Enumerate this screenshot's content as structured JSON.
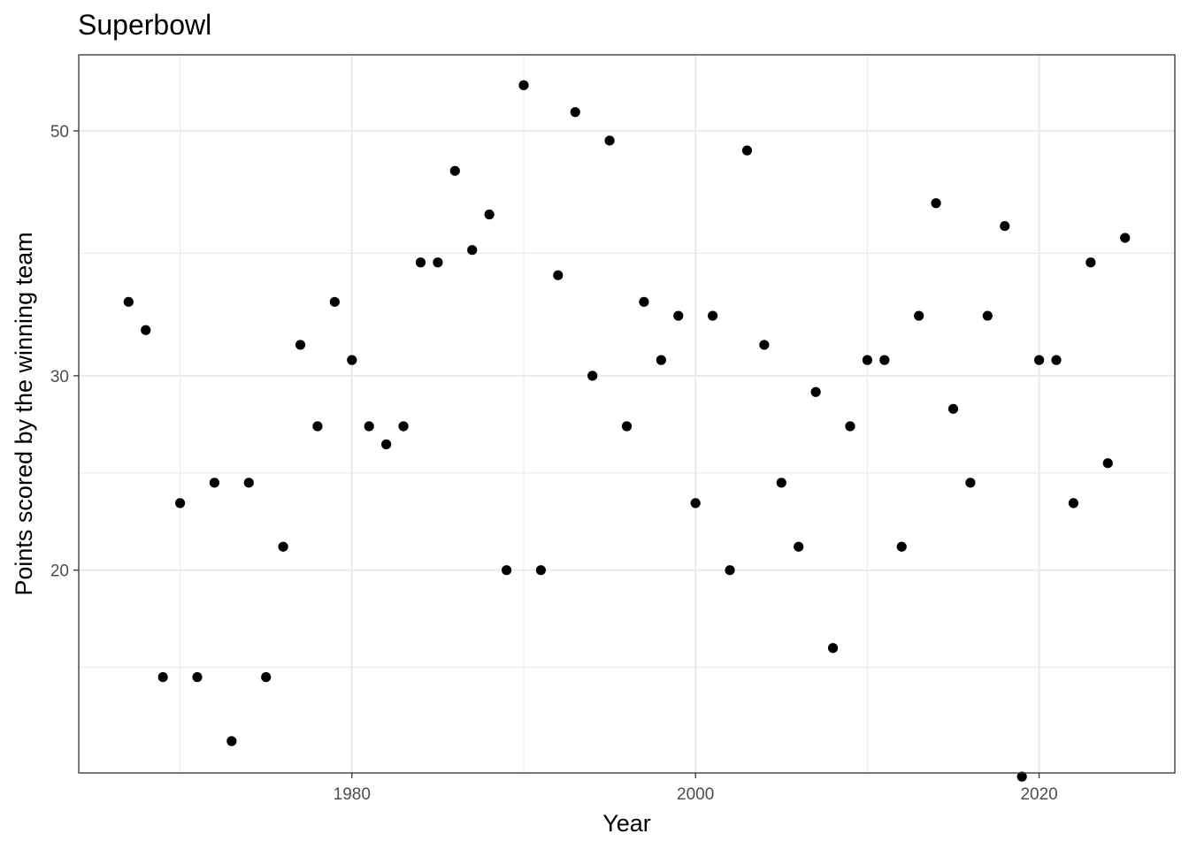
{
  "chart_data": {
    "type": "scatter",
    "title": "Superbowl",
    "xlabel": "Year",
    "ylabel": "Points scored by the winning team",
    "y_scale": "log",
    "x_ticks": [
      1980,
      2000,
      2020
    ],
    "y_ticks": [
      20,
      30,
      50
    ],
    "xlim": [
      1964.1,
      2027.9
    ],
    "ylim": [
      13.1,
      58.6
    ],
    "grid": true,
    "legend": "none",
    "point_color": "#000000",
    "x": [
      1967,
      1968,
      1969,
      1970,
      1971,
      1972,
      1973,
      1974,
      1975,
      1976,
      1977,
      1978,
      1979,
      1980,
      1981,
      1982,
      1983,
      1984,
      1985,
      1986,
      1987,
      1988,
      1989,
      1990,
      1991,
      1992,
      1993,
      1994,
      1995,
      1996,
      1997,
      1998,
      1999,
      2000,
      2001,
      2002,
      2003,
      2004,
      2005,
      2006,
      2007,
      2008,
      2009,
      2010,
      2011,
      2012,
      2013,
      2014,
      2015,
      2016,
      2017,
      2018,
      2019,
      2020,
      2021,
      2022,
      2023,
      2024,
      2025
    ],
    "y": [
      35,
      33,
      16,
      23,
      16,
      24,
      14,
      24,
      16,
      21,
      32,
      27,
      35,
      31,
      27,
      26,
      27,
      38,
      38,
      46,
      39,
      42,
      20,
      55,
      20,
      37,
      52,
      30,
      49,
      27,
      35,
      31,
      34,
      23,
      34,
      20,
      48,
      32,
      24,
      21,
      29,
      17,
      27,
      31,
      31,
      21,
      34,
      43,
      28,
      24,
      34,
      41,
      13,
      31,
      31,
      23,
      38,
      25,
      40
    ]
  }
}
